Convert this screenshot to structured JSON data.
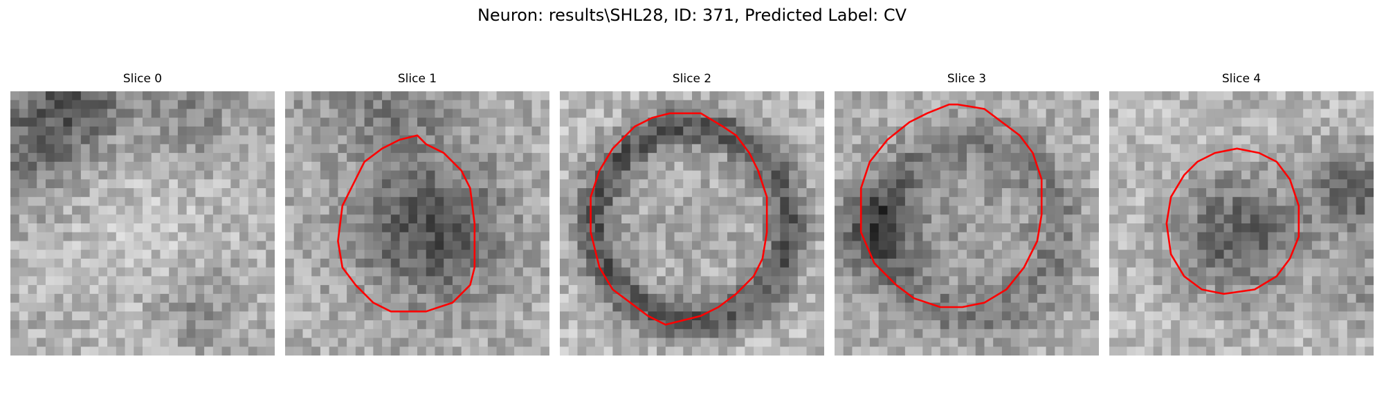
{
  "figure": {
    "title": "Neuron: results\\SHL28, ID: 371, Predicted Label: CV",
    "contour_color": "#ff0000",
    "colormap": "gray"
  },
  "panels": [
    {
      "title": "Slice 0",
      "has_contour": false
    },
    {
      "title": "Slice 1",
      "has_contour": true
    },
    {
      "title": "Slice 2",
      "has_contour": true
    },
    {
      "title": "Slice 3",
      "has_contour": true
    },
    {
      "title": "Slice 4",
      "has_contour": true
    }
  ]
}
